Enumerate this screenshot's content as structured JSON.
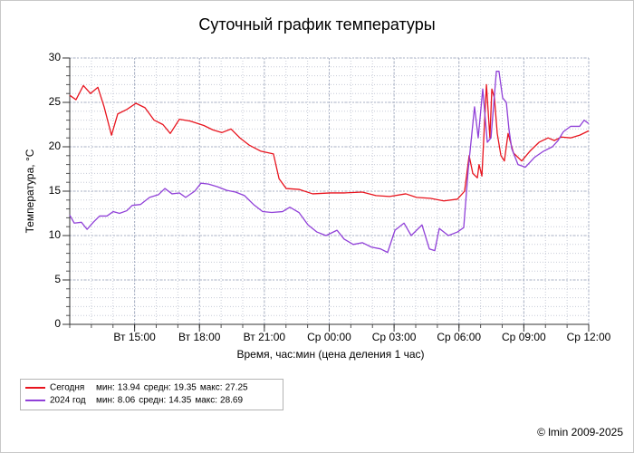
{
  "chart_data": {
    "type": "line",
    "title": "Суточный график температуры",
    "xlabel": "Время, час:мин (цена деления 1 час)",
    "ylabel": "Температура, °C",
    "footer": "© lmin 2009-2025",
    "xlim": [
      0,
      24
    ],
    "xticks": [
      {
        "value": 3,
        "label": "Вт 15:00"
      },
      {
        "value": 6,
        "label": "Вт 18:00"
      },
      {
        "value": 9,
        "label": "Вт 21:00"
      },
      {
        "value": 12,
        "label": "Ср 00:00"
      },
      {
        "value": 15,
        "label": "Ср 03:00"
      },
      {
        "value": 18,
        "label": "Ср 06:00"
      },
      {
        "value": 21,
        "label": "Ср 09:00"
      },
      {
        "value": 24,
        "label": "Ср 12:00"
      }
    ],
    "ylim": [
      0,
      30
    ],
    "yticks": [
      0,
      5,
      10,
      15,
      20,
      25,
      30
    ],
    "grid": true,
    "xminor": 1,
    "yminor": 1,
    "legend": "bottom-left",
    "stats_labels": [
      "мин:",
      "средн:",
      "макс:"
    ],
    "series": [
      {
        "name": "Сегодня",
        "color": "#e8141e",
        "stats": [
          13.94,
          19.35,
          27.25
        ],
        "x": [
          0.0,
          0.29,
          0.63,
          0.96,
          1.3,
          1.59,
          1.93,
          2.22,
          2.64,
          3.06,
          3.48,
          3.9,
          4.31,
          4.65,
          5.07,
          5.57,
          6.2,
          6.62,
          7.04,
          7.46,
          7.87,
          8.29,
          8.84,
          9.42,
          9.68,
          10.01,
          10.6,
          11.23,
          12.06,
          12.69,
          13.53,
          14.16,
          14.79,
          15.54,
          16.04,
          16.67,
          17.3,
          17.93,
          18.26,
          18.47,
          18.64,
          18.85,
          18.93,
          19.06,
          19.27,
          19.43,
          19.52,
          19.64,
          19.77,
          19.94,
          20.1,
          20.27,
          20.52,
          20.9,
          21.28,
          21.7,
          22.12,
          22.41,
          22.74,
          23.16,
          23.58,
          24.0
        ],
        "values": [
          25.8,
          25.3,
          26.9,
          26.0,
          26.7,
          24.5,
          21.3,
          23.7,
          24.2,
          24.9,
          24.4,
          23.0,
          22.5,
          21.5,
          23.1,
          22.9,
          22.4,
          21.9,
          21.6,
          22.0,
          21.0,
          20.2,
          19.5,
          19.2,
          16.4,
          15.3,
          15.2,
          14.7,
          14.8,
          14.8,
          14.9,
          14.5,
          14.4,
          14.7,
          14.3,
          14.2,
          13.9,
          14.1,
          15.0,
          19.0,
          17.0,
          16.5,
          18.0,
          16.7,
          27.0,
          21.0,
          26.5,
          25.5,
          21.5,
          19.0,
          18.4,
          21.5,
          19.3,
          18.4,
          19.5,
          20.5,
          21.0,
          20.7,
          21.1,
          21.0,
          21.3,
          21.8
        ]
      },
      {
        "name": "2024 год",
        "color": "#9040d8",
        "stats": [
          8.06,
          14.35,
          28.69
        ],
        "x": [
          0.0,
          0.21,
          0.54,
          0.8,
          1.09,
          1.38,
          1.72,
          2.01,
          2.3,
          2.64,
          2.89,
          3.27,
          3.69,
          4.1,
          4.4,
          4.73,
          5.07,
          5.36,
          5.78,
          6.07,
          6.41,
          6.83,
          7.25,
          7.67,
          8.08,
          8.5,
          8.92,
          9.34,
          9.84,
          10.18,
          10.6,
          11.02,
          11.43,
          11.85,
          12.36,
          12.69,
          13.11,
          13.53,
          13.95,
          14.37,
          14.7,
          15.04,
          15.46,
          15.79,
          16.29,
          16.63,
          16.88,
          17.09,
          17.51,
          17.93,
          18.22,
          18.43,
          18.72,
          18.89,
          19.1,
          19.31,
          19.48,
          19.73,
          19.85,
          20.02,
          20.19,
          20.31,
          20.44,
          20.73,
          21.07,
          21.49,
          21.91,
          22.32,
          22.58,
          22.83,
          23.16,
          23.58,
          23.79,
          24.0
        ],
        "values": [
          12.3,
          11.4,
          11.5,
          10.7,
          11.5,
          12.2,
          12.2,
          12.7,
          12.5,
          12.8,
          13.4,
          13.5,
          14.3,
          14.6,
          15.3,
          14.7,
          14.8,
          14.3,
          15.0,
          15.9,
          15.8,
          15.5,
          15.1,
          14.9,
          14.5,
          13.5,
          12.7,
          12.6,
          12.7,
          13.2,
          12.6,
          11.2,
          10.4,
          10.0,
          10.6,
          9.6,
          9.0,
          9.2,
          8.7,
          8.5,
          8.1,
          10.6,
          11.4,
          10.0,
          11.2,
          8.5,
          8.3,
          10.8,
          10.0,
          10.4,
          10.9,
          17.5,
          24.5,
          21.0,
          26.5,
          20.5,
          21.0,
          28.5,
          28.5,
          25.5,
          25.0,
          22.0,
          19.8,
          18.0,
          17.7,
          18.8,
          19.5,
          20.0,
          20.7,
          21.7,
          22.3,
          22.3,
          23.0,
          22.6
        ]
      }
    ]
  }
}
